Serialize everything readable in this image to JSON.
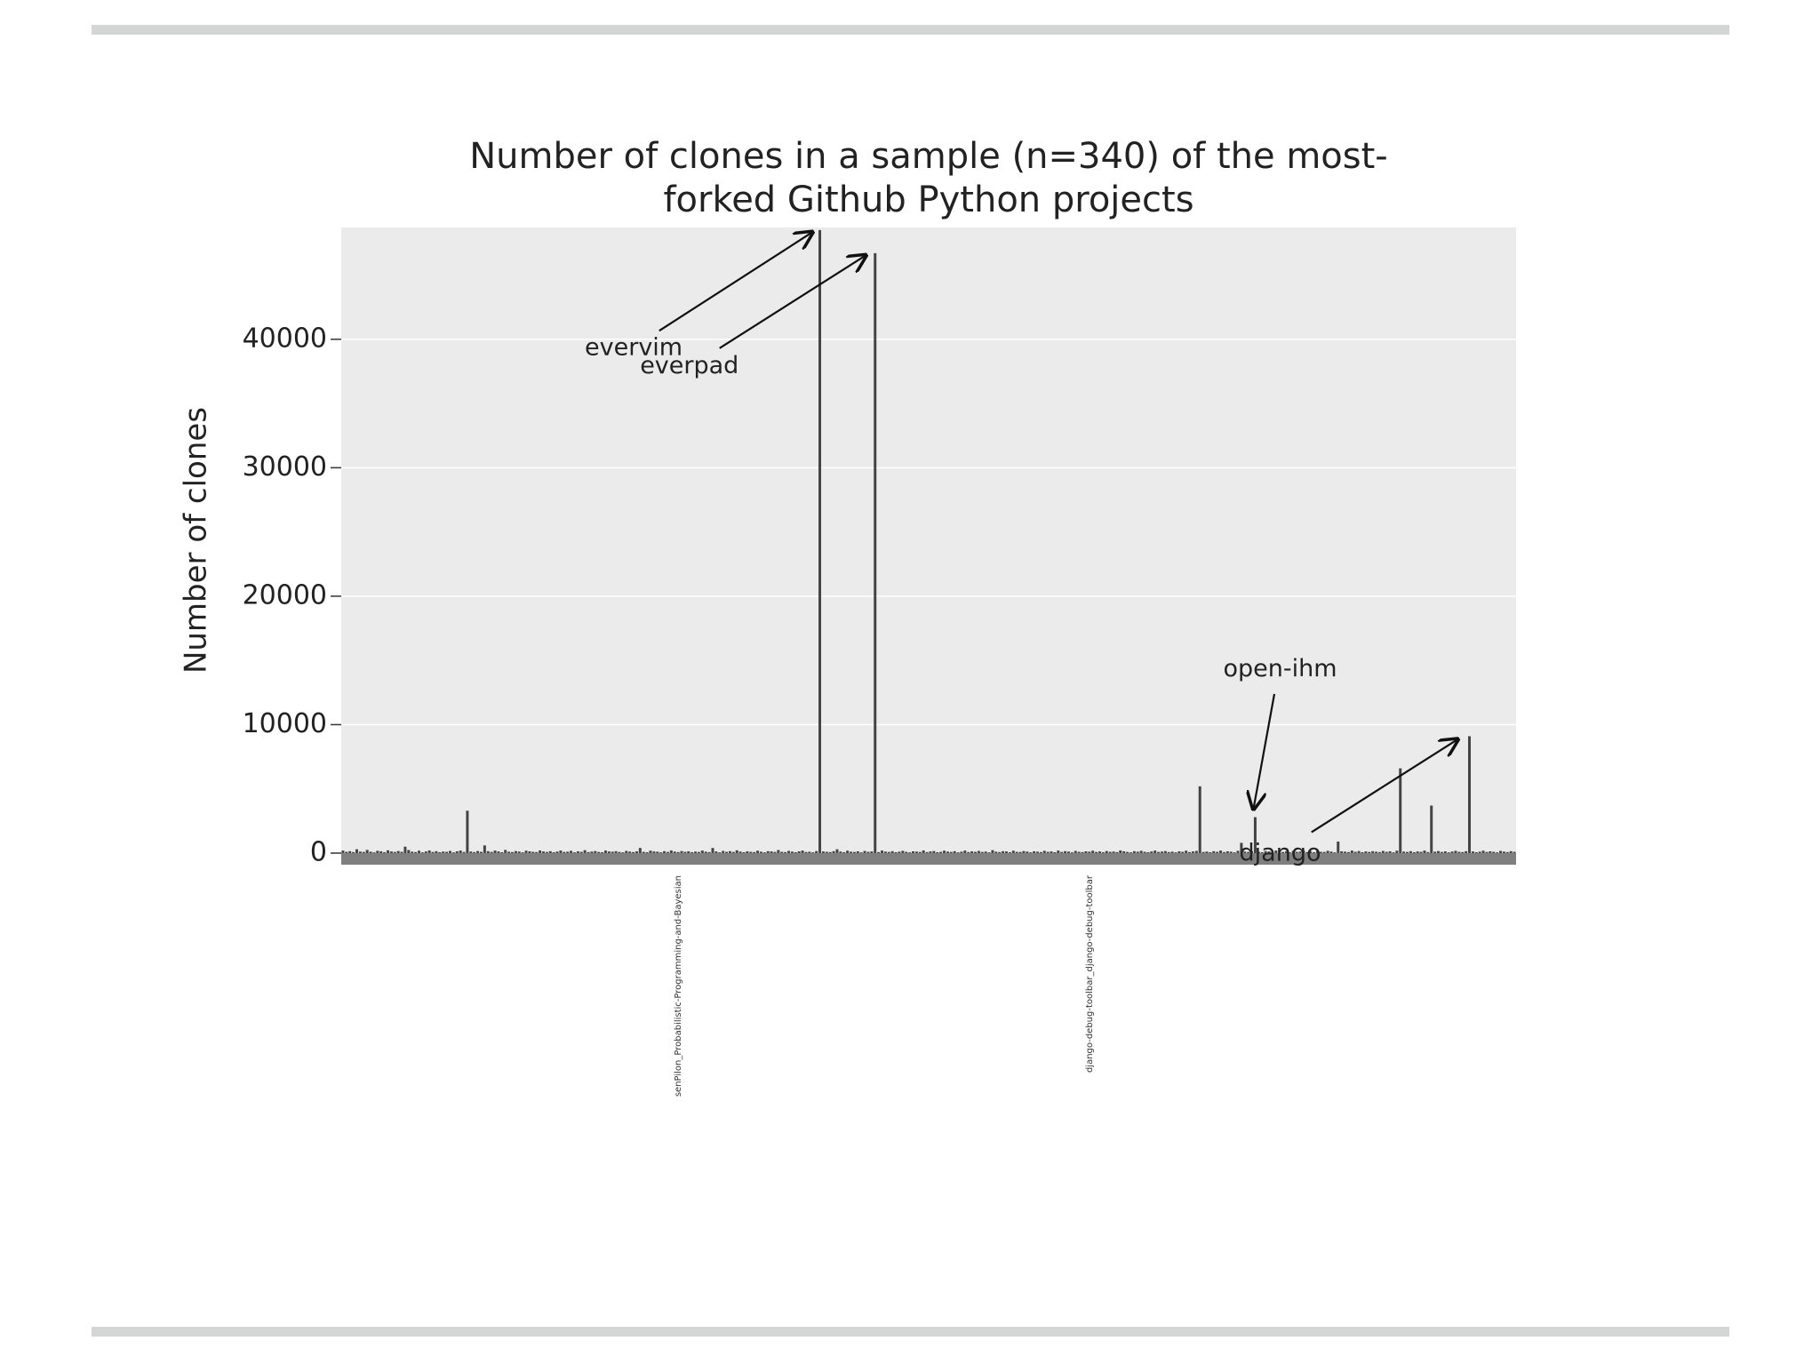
{
  "chart_data": {
    "type": "bar",
    "title": [
      "Number of clones in a sample (n=340) of the most-",
      "forked Github Python projects"
    ],
    "y_label": "Number of clones",
    "color": "#444444",
    "ylim": [
      -900,
      48700
    ],
    "yticks": [
      0,
      10000,
      20000,
      30000,
      40000
    ],
    "grid": true,
    "annotations": [
      {
        "text": "evervim",
        "index": 138
      },
      {
        "text": "everpad",
        "index": 154
      },
      {
        "text": "open-ihm",
        "index": 264
      },
      {
        "text": "django",
        "index": 326
      }
    ],
    "categories": [
      null,
      null,
      null,
      null,
      null,
      null,
      null,
      null,
      null,
      null,
      null,
      null,
      null,
      null,
      null,
      null,
      null,
      null,
      null,
      null,
      null,
      null,
      null,
      null,
      null,
      null,
      null,
      null,
      null,
      null,
      null,
      null,
      null,
      null,
      null,
      null,
      null,
      null,
      null,
      null,
      null,
      null,
      null,
      null,
      null,
      null,
      null,
      null,
      null,
      null,
      null,
      null,
      null,
      null,
      null,
      null,
      null,
      null,
      null,
      null,
      null,
      null,
      null,
      null,
      null,
      null,
      null,
      null,
      null,
      null,
      null,
      null,
      null,
      null,
      null,
      null,
      null,
      null,
      null,
      null,
      null,
      null,
      null,
      null,
      null,
      null,
      null,
      null,
      null,
      null,
      null,
      null,
      null,
      null,
      null,
      null,
      null,
      "senPilon_Probabilistic-Programming-and-Bayesian",
      null,
      null,
      null,
      null,
      null,
      null,
      null,
      null,
      null,
      null,
      null,
      null,
      null,
      null,
      null,
      null,
      null,
      null,
      null,
      null,
      null,
      null,
      null,
      null,
      null,
      null,
      null,
      null,
      null,
      null,
      null,
      null,
      null,
      null,
      null,
      null,
      null,
      null,
      null,
      null,
      null,
      null,
      null,
      null,
      null,
      null,
      null,
      null,
      null,
      null,
      null,
      null,
      null,
      null,
      null,
      null,
      null,
      null,
      null,
      null,
      null,
      null,
      null,
      null,
      null,
      null,
      null,
      null,
      null,
      null,
      null,
      null,
      null,
      null,
      null,
      null,
      null,
      null,
      null,
      null,
      null,
      null,
      null,
      null,
      null,
      null,
      null,
      null,
      null,
      null,
      null,
      null,
      null,
      null,
      null,
      null,
      null,
      null,
      null,
      null,
      null,
      null,
      null,
      null,
      null,
      null,
      null,
      null,
      null,
      null,
      null,
      null,
      null,
      null,
      null,
      null,
      null,
      null,
      "django-debug-toolbar_django-debug-toolbar",
      null,
      null,
      null,
      null,
      null,
      null,
      null,
      null,
      null,
      null,
      null,
      null,
      null,
      null,
      null,
      null,
      null,
      null,
      null,
      null,
      null,
      null,
      null,
      null,
      null,
      null,
      null,
      null,
      null,
      null,
      null,
      null,
      null,
      null,
      null,
      null,
      null,
      null,
      null,
      null,
      null,
      null,
      null,
      null,
      null,
      null,
      null,
      null,
      null,
      null,
      null,
      null,
      null,
      null,
      null,
      null,
      null,
      null,
      null,
      null,
      null,
      null,
      null,
      null,
      null,
      null,
      null,
      null,
      null,
      null,
      null,
      null,
      null,
      null,
      null,
      null,
      null,
      null,
      null,
      null,
      null,
      null,
      null,
      null,
      null,
      null,
      null,
      null,
      null,
      null,
      null,
      null,
      null,
      null,
      null,
      null,
      null,
      null,
      null,
      null,
      null,
      null,
      null,
      null,
      null,
      null,
      null,
      null,
      null,
      null,
      null,
      null,
      null,
      null,
      null,
      null,
      null,
      null,
      null,
      null,
      null,
      null,
      null
    ],
    "values": [
      200,
      100,
      150,
      80,
      300,
      120,
      90,
      250,
      110,
      60,
      180,
      140,
      70,
      220,
      130,
      90,
      160,
      100,
      500,
      240,
      110,
      80,
      190,
      60,
      130,
      210,
      90,
      150,
      70,
      120,
      100,
      170,
      60,
      140,
      200,
      90,
      3300,
      120,
      80,
      160,
      100,
      600,
      150,
      90,
      200,
      130,
      70,
      250,
      110,
      80,
      160,
      120,
      60,
      190,
      140,
      100,
      80,
      210,
      130,
      90,
      150,
      70,
      120,
      200,
      90,
      110,
      180,
      60,
      140,
      100,
      230,
      80,
      120,
      160,
      90,
      70,
      200,
      130,
      110,
      150,
      90,
      60,
      170,
      120,
      80,
      140,
      400,
      100,
      70,
      190,
      130,
      110,
      60,
      150,
      90,
      210,
      120,
      80,
      160,
      100,
      140,
      70,
      120,
      90,
      200,
      110,
      80,
      400,
      130,
      60,
      170,
      100,
      150,
      90,
      220,
      120,
      70,
      140,
      100,
      80,
      190,
      110,
      60,
      150,
      130,
      90,
      240,
      100,
      80,
      170,
      120,
      70,
      140,
      200,
      90,
      110,
      60,
      160,
      48500,
      130,
      100,
      80,
      150,
      300,
      120,
      70,
      190,
      110,
      90,
      140,
      60,
      170,
      100,
      130,
      46700,
      80,
      200,
      120,
      90,
      150,
      70,
      110,
      180,
      100,
      60,
      140,
      120,
      90,
      210,
      80,
      130,
      160,
      70,
      100,
      190,
      120,
      90,
      150,
      60,
      110,
      200,
      80,
      140,
      100,
      170,
      90,
      120,
      60,
      230,
      110,
      80,
      150,
      130,
      70,
      190,
      100,
      90,
      160,
      120,
      60,
      140,
      110,
      80,
      180,
      100,
      130,
      70,
      200,
      90,
      150,
      120,
      60,
      170,
      100,
      80,
      140,
      110,
      190,
      90,
      130,
      70,
      160,
      100,
      120,
      80,
      210,
      140,
      90,
      60,
      150,
      110,
      180,
      100,
      70,
      130,
      200,
      90,
      120,
      160,
      80,
      110,
      60,
      140,
      100,
      190,
      80,
      130,
      170,
      5200,
      90,
      120,
      70,
      150,
      100,
      200,
      80,
      140,
      110,
      60,
      180,
      800,
      120,
      90,
      150,
      2800,
      100,
      70,
      160,
      130,
      80,
      200,
      110,
      90,
      140,
      60,
      170,
      100,
      120,
      190,
      80,
      130,
      70,
      150,
      100,
      90,
      180,
      120,
      60,
      900,
      140,
      110,
      80,
      200,
      100,
      160,
      70,
      130,
      90,
      150,
      110,
      80,
      170,
      100,
      140,
      60,
      190,
      6600,
      120,
      90,
      150,
      70,
      130,
      100,
      200,
      80,
      3700,
      110,
      160,
      90,
      140,
      60,
      120,
      180,
      100,
      80,
      150,
      9100,
      130,
      70,
      110,
      190,
      90,
      140,
      100,
      60,
      170,
      120,
      80,
      150,
      100
    ]
  }
}
